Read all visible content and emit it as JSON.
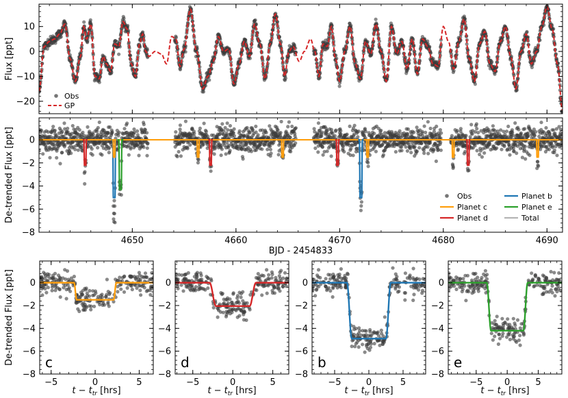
{
  "colors": {
    "obs": "#3c3c3c",
    "gp": "#d62728",
    "planet_c": "#ff9f0e",
    "planet_d": "#d62728",
    "planet_b": "#1f77b4",
    "planet_e": "#2ca02c",
    "total": "#b4b4b4"
  },
  "chart_data": [
    {
      "id": "raw",
      "type": "scatter",
      "ylabel": "Flux [ppt]",
      "xlim": [
        4641,
        4691.5
      ],
      "ylim": [
        -25,
        19
      ],
      "yticks": [
        "10",
        "0",
        "−10",
        "−20"
      ],
      "ytick_values": [
        10,
        0,
        -10,
        -20
      ],
      "legend": [
        {
          "key": "obs",
          "label": "Obs"
        },
        {
          "key": "gp",
          "label": "GP"
        }
      ],
      "segments": [
        [
          4641,
          4651.5
        ],
        [
          4654.1,
          4665.8
        ],
        [
          4667.5,
          4679.8
        ],
        [
          4680.7,
          4691.5
        ]
      ],
      "gp_waypoints": [
        [
          4641,
          -16
        ],
        [
          4641.5,
          2
        ],
        [
          4642,
          4
        ],
        [
          4642.5,
          5
        ],
        [
          4643,
          7
        ],
        [
          4643.5,
          11
        ],
        [
          4644,
          -3
        ],
        [
          4644.5,
          -12
        ],
        [
          4645,
          -2
        ],
        [
          4645.3,
          10
        ],
        [
          4645.6,
          5
        ],
        [
          4646,
          11
        ],
        [
          4646.4,
          -10
        ],
        [
          4646.8,
          -11
        ],
        [
          4647.2,
          -2
        ],
        [
          4647.5,
          -5
        ],
        [
          4647.9,
          -8
        ],
        [
          4648.3,
          3
        ],
        [
          4648.7,
          2
        ],
        [
          4649.1,
          12
        ],
        [
          4649.5,
          9
        ],
        [
          4649.9,
          -5
        ],
        [
          4650.3,
          -10
        ],
        [
          4650.7,
          3
        ],
        [
          4651,
          7
        ],
        [
          4651.3,
          0
        ],
        [
          4651.6,
          -2
        ],
        [
          4652.2,
          0
        ],
        [
          4652.8,
          -1
        ],
        [
          4653.3,
          -5
        ],
        [
          4653.8,
          6
        ],
        [
          4654.2,
          5
        ],
        [
          4654.6,
          -6
        ],
        [
          4655,
          1
        ],
        [
          4655.6,
          17
        ],
        [
          4656.2,
          0
        ],
        [
          4656.8,
          -15
        ],
        [
          4657.3,
          -10
        ],
        [
          4657.8,
          -4
        ],
        [
          4658.3,
          6
        ],
        [
          4658.8,
          0
        ],
        [
          4659.3,
          1
        ],
        [
          4659.8,
          -13
        ],
        [
          4660.3,
          -5
        ],
        [
          4660.8,
          4
        ],
        [
          4661.3,
          -2
        ],
        [
          4661.8,
          11
        ],
        [
          4662.3,
          3
        ],
        [
          4662.8,
          -11
        ],
        [
          4663.3,
          3
        ],
        [
          4663.8,
          15
        ],
        [
          4664.3,
          3
        ],
        [
          4664.7,
          -10
        ],
        [
          4665.1,
          0
        ],
        [
          4665.5,
          2
        ],
        [
          4666.1,
          -4
        ],
        [
          4666.6,
          0
        ],
        [
          4667.2,
          5
        ],
        [
          4667.6,
          0
        ],
        [
          4668,
          -10
        ],
        [
          4668.4,
          3
        ],
        [
          4668.8,
          2
        ],
        [
          4669.2,
          10
        ],
        [
          4669.6,
          -3
        ],
        [
          4670,
          -12
        ],
        [
          4670.5,
          0
        ],
        [
          4671,
          10
        ],
        [
          4671.5,
          -5
        ],
        [
          4672,
          -11
        ],
        [
          4672.5,
          4
        ],
        [
          4673,
          -1
        ],
        [
          4673.5,
          11
        ],
        [
          4674,
          0
        ],
        [
          4674.5,
          -12
        ],
        [
          4675,
          10
        ],
        [
          4675.5,
          -1
        ],
        [
          4676,
          4
        ],
        [
          4676.5,
          -7
        ],
        [
          4677,
          5
        ],
        [
          4677.5,
          -9
        ],
        [
          4678,
          5
        ],
        [
          4678.5,
          2
        ],
        [
          4679,
          -5
        ],
        [
          4679.5,
          -6
        ],
        [
          4680,
          10
        ],
        [
          4680.5,
          4
        ],
        [
          4681,
          -7
        ],
        [
          4681.5,
          4
        ],
        [
          4682,
          13
        ],
        [
          4682.5,
          -3
        ],
        [
          4683,
          -12
        ],
        [
          4683.5,
          3
        ],
        [
          4684,
          8
        ],
        [
          4684.5,
          -5
        ],
        [
          4685,
          -8
        ],
        [
          4685.5,
          4
        ],
        [
          4686,
          10
        ],
        [
          4686.5,
          -2
        ],
        [
          4687,
          -15
        ],
        [
          4687.5,
          0
        ],
        [
          4688,
          7
        ],
        [
          4688.5,
          -5
        ],
        [
          4689,
          0
        ],
        [
          4689.5,
          10
        ],
        [
          4690,
          18
        ],
        [
          4690.5,
          9
        ],
        [
          4691,
          -5
        ],
        [
          4691.5,
          -24
        ]
      ]
    },
    {
      "id": "detrended",
      "type": "scatter",
      "ylabel": "De-trended Flux [ppt]",
      "xlabel": "BJD - 2454833",
      "xlim": [
        4641,
        4691.5
      ],
      "ylim": [
        -8,
        1.9
      ],
      "xticks": [
        "4650",
        "4660",
        "4670",
        "4680",
        "4690"
      ],
      "xtick_values": [
        4650,
        4660,
        4670,
        4680,
        4690
      ],
      "yticks": [
        "0",
        "−2",
        "−4",
        "−6",
        "−8"
      ],
      "ytick_values": [
        0,
        -2,
        -4,
        -6,
        -8
      ],
      "legend": [
        {
          "key": "obs",
          "label": "Obs"
        },
        {
          "key": "planet_b",
          "label": "Planet b"
        },
        {
          "key": "planet_c",
          "label": "Planet c"
        },
        {
          "key": "planet_e",
          "label": "Planet e"
        },
        {
          "key": "planet_d",
          "label": "Planet d"
        },
        {
          "key": "total",
          "label": "Total"
        }
      ],
      "transits": [
        {
          "planet": "d",
          "t0": 4645.45,
          "depth": 2.2,
          "dur": 0.23
        },
        {
          "planet": "b",
          "t0": 4648.25,
          "depth": 5.0,
          "dur": 0.27
        },
        {
          "planet": "c",
          "t0": 4648.25,
          "depth": 1.5,
          "dur": 0.21
        },
        {
          "planet": "e",
          "t0": 4648.85,
          "depth": 4.3,
          "dur": 0.29
        },
        {
          "planet": "c",
          "t0": 4656.35,
          "depth": 1.5,
          "dur": 0.21
        },
        {
          "planet": "d",
          "t0": 4657.55,
          "depth": 2.2,
          "dur": 0.23
        },
        {
          "planet": "c",
          "t0": 4664.5,
          "depth": 1.5,
          "dur": 0.21
        },
        {
          "planet": "d",
          "t0": 4669.8,
          "depth": 2.2,
          "dur": 0.23
        },
        {
          "planet": "b",
          "t0": 4672.05,
          "depth": 5.0,
          "dur": 0.27
        },
        {
          "planet": "c",
          "t0": 4672.7,
          "depth": 1.5,
          "dur": 0.21
        },
        {
          "planet": "c",
          "t0": 4680.95,
          "depth": 1.5,
          "dur": 0.21
        },
        {
          "planet": "d",
          "t0": 4682.4,
          "depth": 2.2,
          "dur": 0.23
        },
        {
          "planet": "c",
          "t0": 4689.1,
          "depth": 1.5,
          "dur": 0.21
        }
      ]
    },
    {
      "id": "fold-c",
      "type": "scatter",
      "planet": "c",
      "panel_label": "c",
      "xlabel": "t − t",
      "xlabel_sub": "tr",
      "xlabel_unit": " [hrs]",
      "ylabel": "De-trended Flux [ppt]",
      "xlim": [
        -6.3,
        6.6
      ],
      "ylim": [
        -8,
        1.9
      ],
      "xticks": [
        "−5",
        "0",
        "5"
      ],
      "xtick_values": [
        -5,
        0,
        5
      ],
      "yticks": [
        "0",
        "−2",
        "−4",
        "−6",
        "−8"
      ],
      "ytick_values": [
        0,
        -2,
        -4,
        -6,
        -8
      ],
      "depth": 1.5,
      "half_dur": 2.4,
      "ingress": 0.3
    },
    {
      "id": "fold-d",
      "type": "scatter",
      "planet": "d",
      "panel_label": "d",
      "xlabel": "t − t",
      "xlabel_sub": "tr",
      "xlabel_unit": " [hrs]",
      "xlim": [
        -7.2,
        7.0
      ],
      "ylim": [
        -8,
        1.9
      ],
      "xticks": [
        "−5",
        "0",
        "5"
      ],
      "xtick_values": [
        -5,
        0,
        5
      ],
      "yticks": [
        "0",
        "−2",
        "−4",
        "−6",
        "−8"
      ],
      "ytick_values": [
        0,
        -2,
        -4,
        -6,
        -8
      ],
      "depth": 2.05,
      "half_dur": 2.9,
      "ingress": 0.8
    },
    {
      "id": "fold-b",
      "type": "scatter",
      "planet": "b",
      "panel_label": "b",
      "xlabel": "t − t",
      "xlabel_sub": "tr",
      "xlabel_unit": " [hrs]",
      "xlim": [
        -8.3,
        8.3
      ],
      "ylim": [
        -8,
        1.9
      ],
      "xticks": [
        "−5",
        "0",
        "5"
      ],
      "xtick_values": [
        -5,
        0,
        5
      ],
      "yticks": [
        "0",
        "−2",
        "−4",
        "−6",
        "−8"
      ],
      "ytick_values": [
        0,
        -2,
        -4,
        -6,
        -8
      ],
      "depth": 4.9,
      "half_dur": 3.2,
      "ingress": 0.7
    },
    {
      "id": "fold-e",
      "type": "scatter",
      "planet": "e",
      "panel_label": "e",
      "xlabel": "t − t",
      "xlabel_sub": "tr",
      "xlabel_unit": " [hrs]",
      "xlim": [
        -9.5,
        8.8
      ],
      "ylim": [
        -8,
        1.9
      ],
      "xticks": [
        "−5",
        "0",
        "5"
      ],
      "xtick_values": [
        -5,
        0,
        5
      ],
      "yticks": [
        "0",
        "−2",
        "−4",
        "−6",
        "−8"
      ],
      "ytick_values": [
        0,
        -2,
        -4,
        -6,
        -8
      ],
      "depth": 4.2,
      "half_dur": 3.3,
      "ingress": 0.7
    }
  ]
}
